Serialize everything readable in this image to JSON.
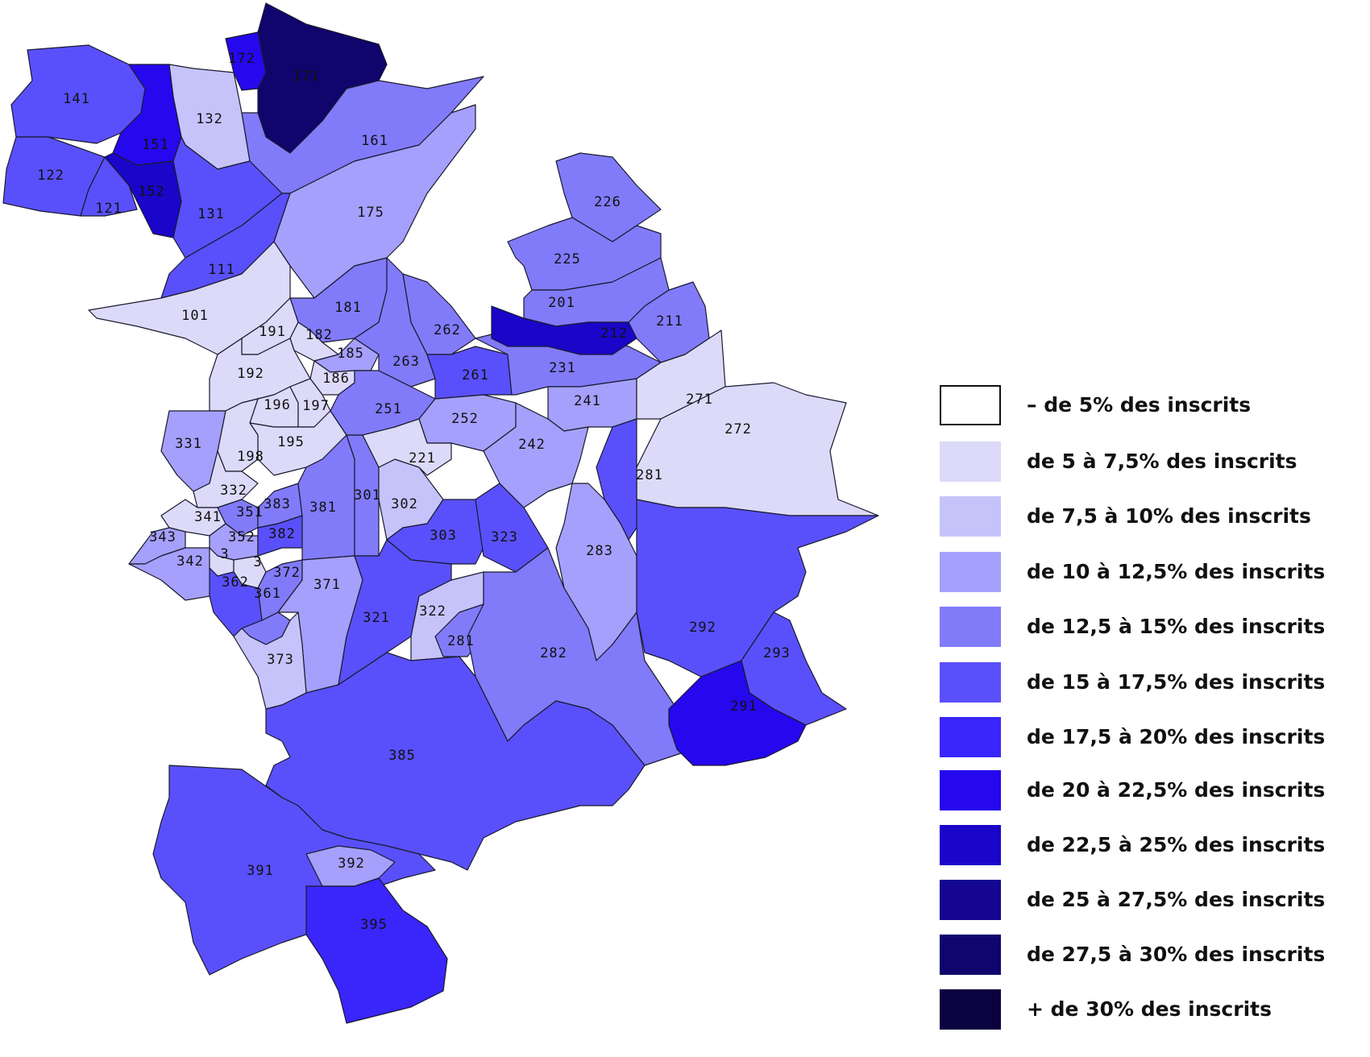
{
  "legend": [
    {
      "label": "–  de 5% des inscrits",
      "color": "#ffffff"
    },
    {
      "label": "de  5 à 7,5% des inscrits",
      "color": "#dcdaf8"
    },
    {
      "label": "de  7,5 à 10% des inscrits",
      "color": "#c6c3fb"
    },
    {
      "label": "de  10 à 12,5% des inscrits",
      "color": "#a5a0fb"
    },
    {
      "label": "de  12,5 à 15% des inscrits",
      "color": "#817bfa"
    },
    {
      "label": "de  15 à 17,5% des inscrits",
      "color": "#5a50fb"
    },
    {
      "label": "de  17,5 à 20% des inscrits",
      "color": "#3a25fb"
    },
    {
      "label": "de  20 à 22,5% des inscrits",
      "color": "#2508ee"
    },
    {
      "label": "de  22,5 à 25% des inscrits",
      "color": "#1a06c8"
    },
    {
      "label": "de  25 à 27,5% des inscrits",
      "color": "#150690"
    },
    {
      "label": "de  27,5 à 30% des inscrits",
      "color": "#10056c"
    },
    {
      "label": "+ de 30% des inscrits",
      "color": "#0a0340"
    }
  ],
  "districts": [
    {
      "id": "141",
      "class": 5
    },
    {
      "id": "122",
      "class": 5
    },
    {
      "id": "121",
      "class": 5
    },
    {
      "id": "151",
      "class": 7
    },
    {
      "id": "152",
      "class": 8
    },
    {
      "id": "132",
      "class": 2
    },
    {
      "id": "172",
      "class": 7
    },
    {
      "id": "171",
      "class": 10
    },
    {
      "id": "131",
      "class": 5
    },
    {
      "id": "161",
      "class": 4
    },
    {
      "id": "111",
      "class": 5
    },
    {
      "id": "175",
      "class": 3
    },
    {
      "id": "101",
      "class": 1
    },
    {
      "id": "181",
      "class": 4
    },
    {
      "id": "191",
      "class": 1
    },
    {
      "id": "182",
      "class": 1
    },
    {
      "id": "185",
      "class": 3
    },
    {
      "id": "186",
      "class": 1
    },
    {
      "id": "192",
      "class": 1
    },
    {
      "id": "196",
      "class": 1
    },
    {
      "id": "197",
      "class": 1
    },
    {
      "id": "195",
      "class": 1
    },
    {
      "id": "198",
      "class": 1
    },
    {
      "id": "331",
      "class": 3
    },
    {
      "id": "332",
      "class": 1
    },
    {
      "id": "341",
      "class": 1
    },
    {
      "id": "343",
      "class": 3
    },
    {
      "id": "342",
      "class": 3
    },
    {
      "id": "351",
      "class": 4
    },
    {
      "id": "352",
      "class": 3
    },
    {
      "id": "353",
      "class": 1
    },
    {
      "id": "354",
      "class": 1
    },
    {
      "id": "383",
      "class": 4
    },
    {
      "id": "382",
      "class": 5
    },
    {
      "id": "381",
      "class": 4
    },
    {
      "id": "362",
      "class": 5
    },
    {
      "id": "361",
      "class": 4
    },
    {
      "id": "372",
      "class": 4
    },
    {
      "id": "371",
      "class": 3
    },
    {
      "id": "373",
      "class": 2
    },
    {
      "id": "301",
      "class": 4
    },
    {
      "id": "302",
      "class": 2
    },
    {
      "id": "303",
      "class": 5
    },
    {
      "id": "323",
      "class": 5
    },
    {
      "id": "321",
      "class": 5
    },
    {
      "id": "322",
      "class": 2
    },
    {
      "id": "281b",
      "class": 4
    },
    {
      "id": "251",
      "class": 4
    },
    {
      "id": "252",
      "class": 3
    },
    {
      "id": "221",
      "class": 1
    },
    {
      "id": "263",
      "class": 4
    },
    {
      "id": "262",
      "class": 4
    },
    {
      "id": "261",
      "class": 5
    },
    {
      "id": "231",
      "class": 4
    },
    {
      "id": "241",
      "class": 3
    },
    {
      "id": "242",
      "class": 3
    },
    {
      "id": "226",
      "class": 4
    },
    {
      "id": "225",
      "class": 4
    },
    {
      "id": "201",
      "class": 4
    },
    {
      "id": "212",
      "class": 8
    },
    {
      "id": "211",
      "class": 4
    },
    {
      "id": "271",
      "class": 1
    },
    {
      "id": "272",
      "class": 1
    },
    {
      "id": "281",
      "class": 5
    },
    {
      "id": "283",
      "class": 3
    },
    {
      "id": "282",
      "class": 4
    },
    {
      "id": "292",
      "class": 5
    },
    {
      "id": "293",
      "class": 5
    },
    {
      "id": "291",
      "class": 7
    },
    {
      "id": "385",
      "class": 5
    },
    {
      "id": "391",
      "class": 5
    },
    {
      "id": "392",
      "class": 3
    },
    {
      "id": "395",
      "class": 6
    }
  ],
  "labels": {
    "141": "141",
    "122": "122",
    "121": "121",
    "151": "151",
    "152": "152",
    "132": "132",
    "172": "172",
    "171": "171",
    "131": "131",
    "161": "161",
    "111": "111",
    "175": "175",
    "101": "101",
    "181": "181",
    "191": "191",
    "182": "182",
    "185": "185",
    "186": "186",
    "192": "192",
    "196": "196",
    "197": "197",
    "195": "195",
    "198": "198",
    "331": "331",
    "332": "332",
    "341": "341",
    "343": "343",
    "342": "342",
    "351": "351",
    "352": "352",
    "353": "3",
    "354": "3",
    "383": "383",
    "382": "382",
    "381": "381",
    "362": "362",
    "361": "361",
    "372": "372",
    "371": "371",
    "373": "373",
    "301": "301",
    "302": "302",
    "303": "303",
    "323": "323",
    "321": "321",
    "322": "322",
    "281b": "281",
    "251": "251",
    "252": "252",
    "221": "221",
    "263": "263",
    "262": "262",
    "261": "261",
    "231": "231",
    "241": "241",
    "242": "242",
    "226": "226",
    "225": "225",
    "201": "201",
    "212": "212",
    "211": "211",
    "271": "271",
    "272": "272",
    "281": "281",
    "283": "283",
    "282": "282",
    "292": "292",
    "293": "293",
    "291": "291",
    "385": "385",
    "391": "391",
    "392": "392",
    "395": "395"
  }
}
